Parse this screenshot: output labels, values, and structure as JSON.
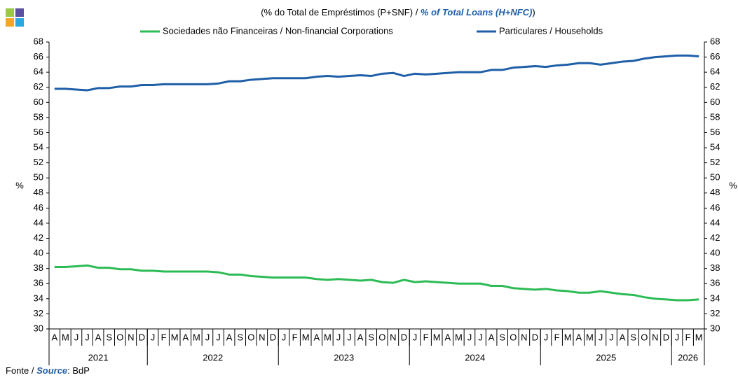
{
  "chart_data": {
    "type": "line",
    "title": [
      "(% do Total de Empréstimos (P+SNF)  / ",
      "% of Total Loans (H+NFC)",
      ")"
    ],
    "source": [
      "Fonte / ",
      "Source",
      ": BdP"
    ],
    "ylabel": "%",
    "y2label": "%",
    "categories": [
      "A",
      "M",
      "J",
      "J",
      "A",
      "S",
      "O",
      "N",
      "D",
      "J",
      "F",
      "M",
      "A",
      "M",
      "J",
      "J",
      "A",
      "S",
      "O",
      "N",
      "D",
      "J",
      "F",
      "M",
      "A",
      "M",
      "J",
      "J",
      "A",
      "S",
      "O",
      "N",
      "D",
      "J",
      "F",
      "M",
      "A",
      "M",
      "J",
      "J",
      "A",
      "S",
      "O",
      "N",
      "D",
      "J",
      "F",
      "M",
      "A",
      "M",
      "J",
      "J",
      "A",
      "S",
      "O",
      "N",
      "D",
      "J",
      "F",
      "M"
    ],
    "years": [
      "2021",
      "2022",
      "2023",
      "2024",
      "2025",
      "2026"
    ],
    "series": [
      {
        "name": "Sociedades não Financeiras / Non-financial Corporations",
        "color": "#2dbb55",
        "values": [
          38.2,
          38.2,
          38.3,
          38.4,
          38.1,
          38.1,
          37.9,
          37.9,
          37.7,
          37.7,
          37.6,
          37.6,
          37.6,
          37.6,
          37.6,
          37.5,
          37.2,
          37.2,
          37.0,
          36.9,
          36.8,
          36.8,
          36.8,
          36.8,
          36.6,
          36.5,
          36.6,
          36.5,
          36.4,
          36.5,
          36.2,
          36.1,
          36.5,
          36.2,
          36.3,
          36.2,
          36.1,
          36.0,
          36.0,
          36.0,
          35.7,
          35.7,
          35.4,
          35.3,
          35.2,
          35.3,
          35.1,
          35.0,
          34.8,
          34.8,
          35.0,
          34.8,
          34.6,
          34.5,
          34.2,
          34.0,
          33.9,
          33.8,
          33.8,
          33.9
        ]
      },
      {
        "name": "Particulares / Households",
        "color": "#1f5fa8",
        "values": [
          61.8,
          61.8,
          61.7,
          61.6,
          61.9,
          61.9,
          62.1,
          62.1,
          62.3,
          62.3,
          62.4,
          62.4,
          62.4,
          62.4,
          62.4,
          62.5,
          62.8,
          62.8,
          63.0,
          63.1,
          63.2,
          63.2,
          63.2,
          63.2,
          63.4,
          63.5,
          63.4,
          63.5,
          63.6,
          63.5,
          63.8,
          63.9,
          63.5,
          63.8,
          63.7,
          63.8,
          63.9,
          64.0,
          64.0,
          64.0,
          64.3,
          64.3,
          64.6,
          64.7,
          64.8,
          64.7,
          64.9,
          65.0,
          65.2,
          65.2,
          65.0,
          65.2,
          65.4,
          65.5,
          65.8,
          66.0,
          66.1,
          66.2,
          66.2,
          66.1
        ]
      }
    ],
    "ylim": [
      30,
      68
    ],
    "yticks": [
      30,
      32,
      34,
      36,
      38,
      40,
      42,
      44,
      46,
      48,
      50,
      52,
      54,
      56,
      58,
      60,
      62,
      64,
      66,
      68
    ],
    "y2lim": [
      30,
      68
    ],
    "y2ticks": [
      30,
      32,
      34,
      36,
      38,
      40,
      42,
      44,
      46,
      48,
      50,
      52,
      54,
      56,
      58,
      60,
      62,
      64,
      66,
      68
    ],
    "grid": false
  }
}
